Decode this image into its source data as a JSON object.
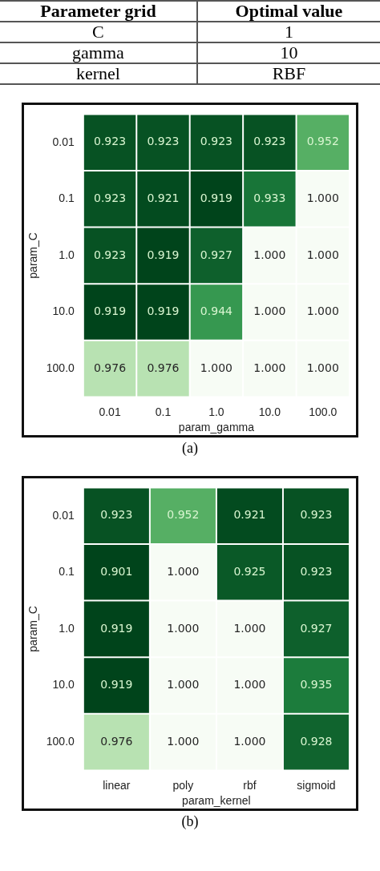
{
  "chart_data": [
    {
      "type": "other",
      "annotations": [
        "Parameter grid",
        "Optimal value",
        "C",
        "1",
        "gamma",
        "10",
        "kernel",
        "RBF"
      ]
    },
    {
      "type": "heatmap",
      "xlabel": "param_gamma",
      "ylabel": "param_C",
      "data_labels": true,
      "categories": [
        "0.01",
        "0.1",
        "1.0",
        "10.0",
        "100.0"
      ],
      "y_categories": [
        "0.01",
        "0.1",
        "1.0",
        "10.0",
        "100.0"
      ],
      "cells": [
        [
          0.923,
          0.923,
          0.923,
          0.923,
          0.952
        ],
        [
          0.923,
          0.921,
          0.919,
          0.933,
          1.0
        ],
        [
          0.923,
          0.919,
          0.927,
          1.0,
          1.0
        ],
        [
          0.919,
          0.919,
          0.944,
          1.0,
          1.0
        ],
        [
          0.976,
          0.976,
          1.0,
          1.0,
          1.0
        ]
      ],
      "cell_labels": [
        [
          "0.923",
          "0.923",
          "0.923",
          "0.923",
          "0.952"
        ],
        [
          "0.923",
          "0.921",
          "0.919",
          "0.933",
          "1.000"
        ],
        [
          "0.923",
          "0.919",
          "0.927",
          "1.000",
          "1.000"
        ],
        [
          "0.919",
          "0.919",
          "0.944",
          "1.000",
          "1.000"
        ],
        [
          "0.976",
          "0.976",
          "1.000",
          "1.000",
          "1.000"
        ]
      ],
      "annotations": [
        "(a)"
      ]
    },
    {
      "type": "heatmap",
      "xlabel": "param_kernel",
      "ylabel": "param_C",
      "data_labels": true,
      "categories": [
        "linear",
        "poly",
        "rbf",
        "sigmoid"
      ],
      "y_categories": [
        "0.01",
        "0.1",
        "1.0",
        "10.0",
        "100.0"
      ],
      "cells": [
        [
          0.923,
          0.952,
          0.921,
          0.923
        ],
        [
          0.901,
          1.0,
          0.925,
          0.923
        ],
        [
          0.919,
          1.0,
          1.0,
          0.927
        ],
        [
          0.919,
          1.0,
          1.0,
          0.935
        ],
        [
          0.976,
          1.0,
          1.0,
          0.928
        ]
      ],
      "cell_labels": [
        [
          "0.923",
          "0.952",
          "0.921",
          "0.923"
        ],
        [
          "0.901",
          "1.000",
          "0.925",
          "0.923"
        ],
        [
          "0.919",
          "1.000",
          "1.000",
          "0.927"
        ],
        [
          "0.919",
          "1.000",
          "1.000",
          "0.935"
        ],
        [
          "0.976",
          "1.000",
          "1.000",
          "0.928"
        ]
      ],
      "annotations": [
        "(b)"
      ]
    }
  ]
}
